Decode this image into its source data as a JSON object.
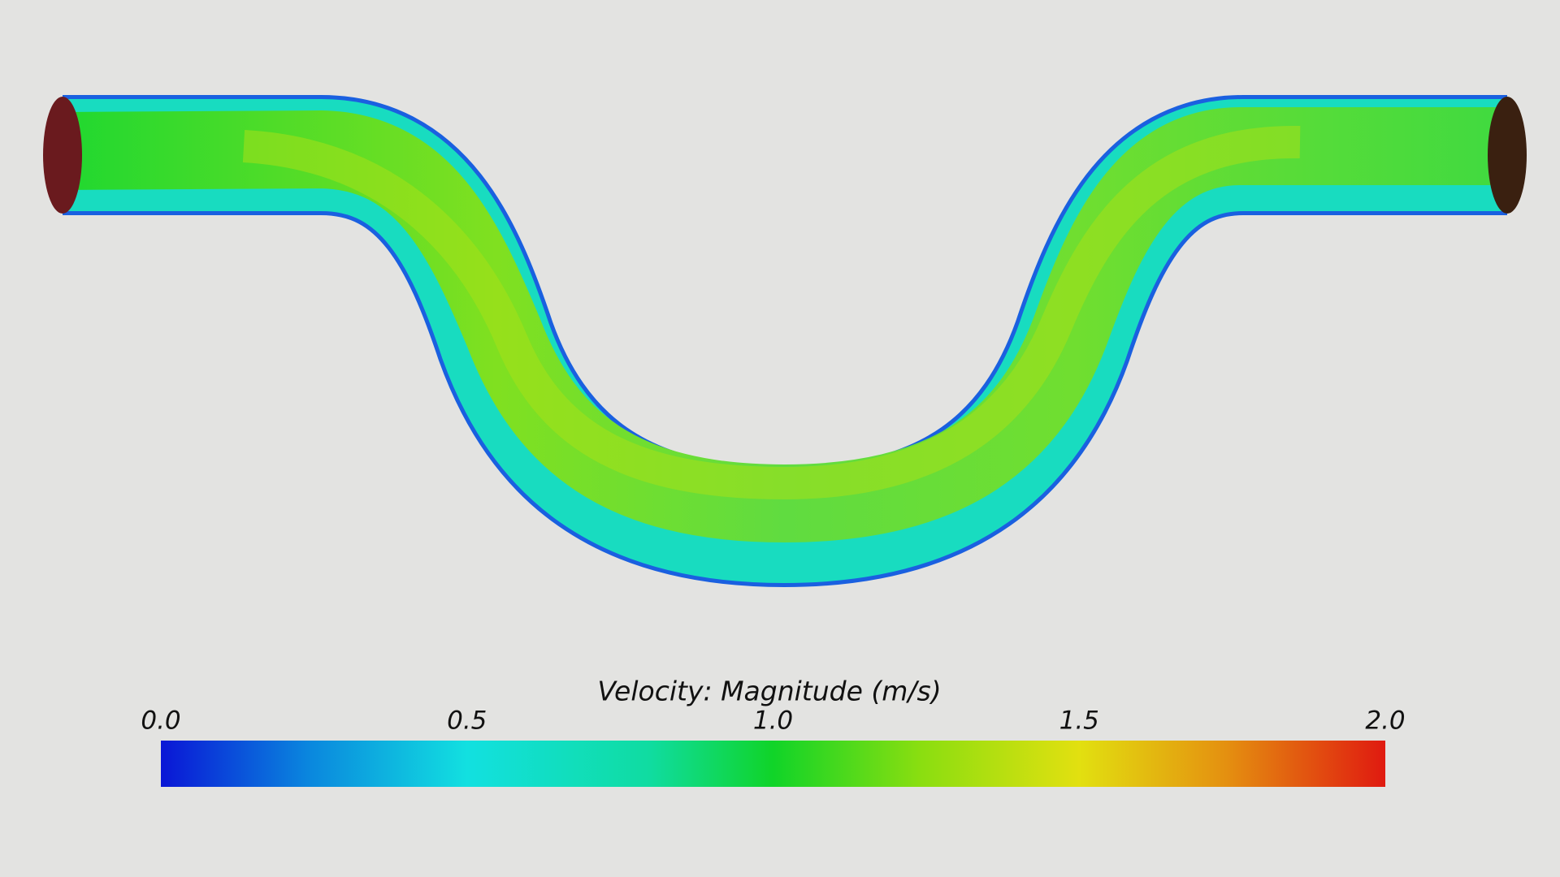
{
  "colorbar": {
    "title": "Velocity: Magnitude (m/s)",
    "range": [
      0,
      2
    ],
    "ticks": [
      {
        "value": 0,
        "label": "0.0"
      },
      {
        "value": 0.5,
        "label": "0.5"
      },
      {
        "value": 1,
        "label": "1.0"
      },
      {
        "value": 1.5,
        "label": "1.5"
      },
      {
        "value": 2,
        "label": "2.0"
      }
    ]
  }
}
